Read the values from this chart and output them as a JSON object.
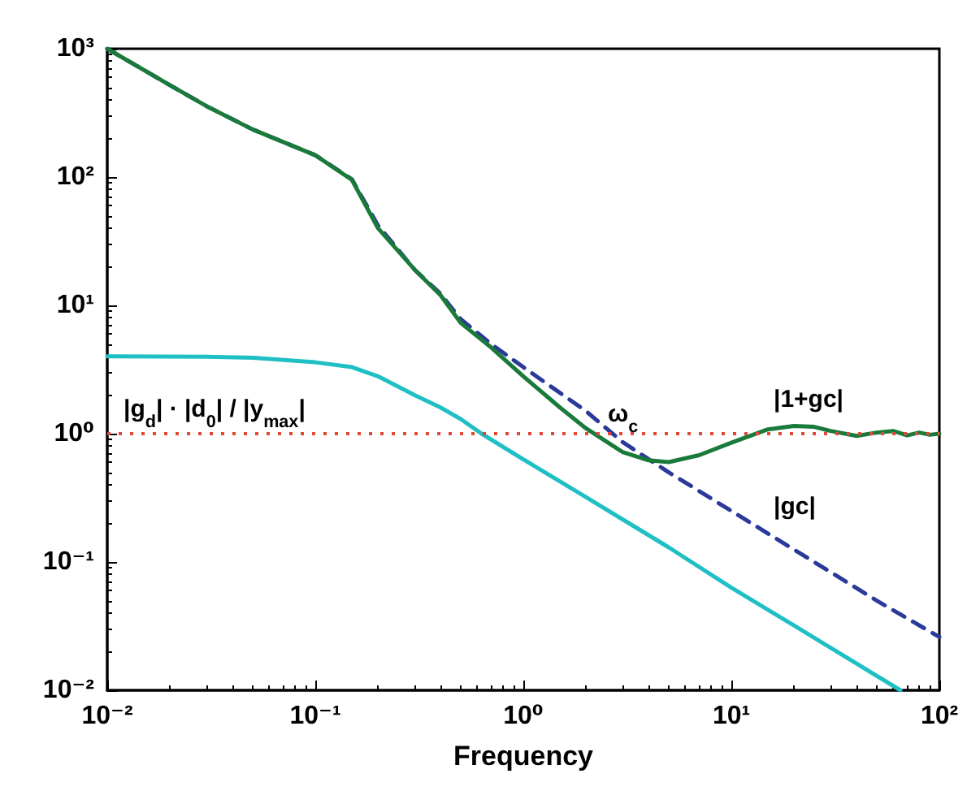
{
  "chart_data": {
    "type": "line",
    "xlabel": "Frequency",
    "log": "xy",
    "grid": false,
    "xlim": [
      0.01,
      100
    ],
    "ylim": [
      0.01,
      1000
    ],
    "xticks": [
      {
        "value": 0.01,
        "label": "10⁻²"
      },
      {
        "value": 0.1,
        "label": "10⁻¹"
      },
      {
        "value": 1,
        "label": "10⁰"
      },
      {
        "value": 10,
        "label": "10¹"
      },
      {
        "value": 100,
        "label": "10²"
      }
    ],
    "yticks": [
      {
        "value": 0.01,
        "label": "10⁻²"
      },
      {
        "value": 0.1,
        "label": "10⁻¹"
      },
      {
        "value": 1,
        "label": "10⁰"
      },
      {
        "value": 10,
        "label": "10¹"
      },
      {
        "value": 100,
        "label": "10²"
      },
      {
        "value": 1000,
        "label": "10³"
      }
    ],
    "series": [
      {
        "color": "#1fbfc4",
        "line_style": "solid",
        "x": [
          0.01,
          0.03,
          0.05,
          0.1,
          0.15,
          0.2,
          0.3,
          0.4,
          0.5,
          0.63,
          1,
          2,
          5,
          10,
          20,
          65
        ],
        "values": [
          4,
          3.98,
          3.9,
          3.6,
          3.3,
          2.8,
          2.0,
          1.6,
          1.3,
          1.0,
          0.63,
          0.32,
          0.13,
          0.063,
          0.032,
          0.01
        ]
      },
      {
        "color": "#2b3a9a",
        "line_style": "dashed",
        "x": [
          0.01,
          0.02,
          0.03,
          0.05,
          0.1,
          0.15,
          0.2,
          0.3,
          0.4,
          0.5,
          0.7,
          1,
          2,
          3,
          5,
          10,
          20,
          50,
          100
        ],
        "values": [
          1000,
          520,
          357,
          235,
          148,
          96,
          42,
          19,
          12.3,
          7.8,
          5.0,
          3.3,
          1.5,
          0.86,
          0.5,
          0.25,
          0.125,
          0.05,
          0.026
        ]
      },
      {
        "color": "#1a7a3a",
        "line_style": "solid",
        "x": [
          0.01,
          0.02,
          0.03,
          0.05,
          0.1,
          0.15,
          0.2,
          0.3,
          0.4,
          0.5,
          0.7,
          1,
          1.5,
          2,
          3,
          4,
          5,
          7,
          10,
          15,
          20,
          25,
          30,
          40,
          50,
          60,
          70,
          80,
          90,
          100
        ],
        "values": [
          1000,
          520,
          357,
          235,
          148,
          95,
          40,
          19,
          12,
          7.3,
          4.7,
          2.8,
          1.6,
          1.1,
          0.72,
          0.62,
          0.6,
          0.68,
          0.85,
          1.08,
          1.15,
          1.13,
          1.05,
          0.96,
          1.02,
          1.05,
          0.97,
          1.02,
          0.98,
          1.0
        ]
      }
    ],
    "ref_lines": [
      {
        "axis": "y",
        "value": 1,
        "color": "#e0483a",
        "line_style": "dotted"
      }
    ],
    "annotations": [
      "|g$_{d}$| · |d$_{0}$| / |y$_{max}$|",
      "ω$_{c}$",
      "|1+gc|",
      "|gc|"
    ]
  }
}
